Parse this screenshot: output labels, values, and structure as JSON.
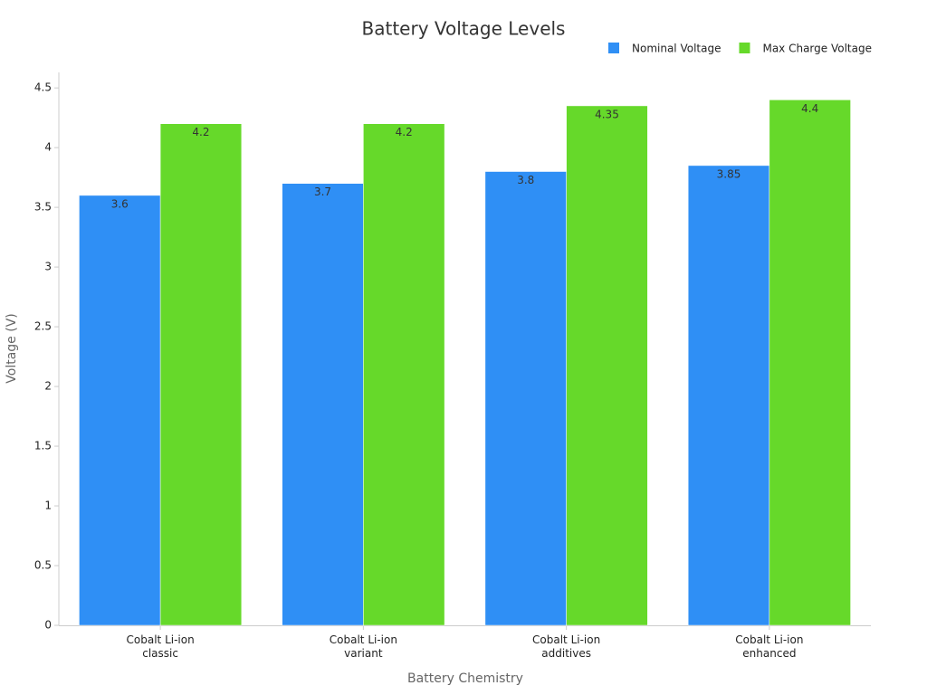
{
  "chart_data": {
    "type": "bar",
    "title": "Battery Voltage Levels",
    "x_label": "Battery Chemistry",
    "y_label": "Voltage (V)",
    "categories": [
      "Cobalt Li-ion classic",
      "Cobalt Li-ion variant",
      "Cobalt Li-ion additives",
      "Cobalt Li-ion enhanced"
    ],
    "series": [
      {
        "name": "Nominal Voltage",
        "color": "#2f8ff5",
        "values": [
          3.6,
          3.7,
          3.8,
          3.85
        ]
      },
      {
        "name": "Max Charge Voltage",
        "color": "#66d92a",
        "values": [
          4.2,
          4.2,
          4.35,
          4.4
        ]
      }
    ],
    "ylim": [
      0,
      4.63
    ],
    "yticks": [
      0,
      0.5,
      1,
      1.5,
      2,
      2.5,
      3,
      3.5,
      4,
      4.5
    ],
    "legend": "top-right",
    "grid": false
  }
}
